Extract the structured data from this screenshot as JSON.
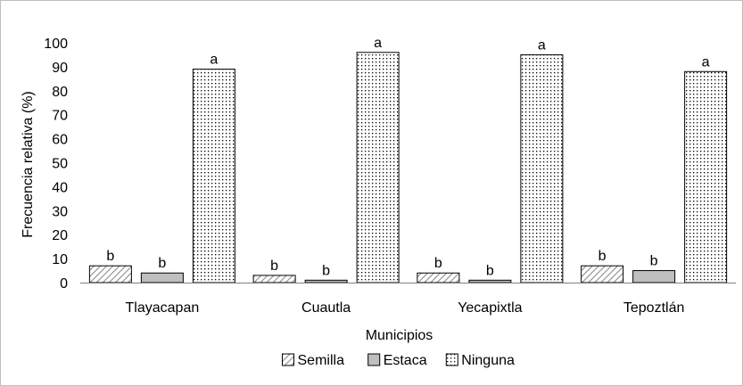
{
  "chart_data": {
    "type": "bar",
    "xlabel": "Municipios",
    "ylabel": "Frecuencia relativa (%)",
    "ylim": [
      0,
      100
    ],
    "yticks": [
      0,
      10,
      20,
      30,
      40,
      50,
      60,
      70,
      80,
      90,
      100
    ],
    "grid": false,
    "legend_position": "bottom",
    "categories": [
      "Tlayacapan",
      "Cuautla",
      "Yecapixtla",
      "Tepoztlán"
    ],
    "series": [
      {
        "name": "Semilla",
        "pattern": "hatch",
        "color": "#a6a6a6",
        "values": [
          7,
          3,
          4,
          7
        ],
        "labels": [
          "b",
          "b",
          "b",
          "b"
        ]
      },
      {
        "name": "Estaca",
        "pattern": "solid",
        "color": "#bfbfbf",
        "values": [
          4,
          1,
          1,
          5
        ],
        "labels": [
          "b",
          "b",
          "b",
          "b"
        ]
      },
      {
        "name": "Ninguna",
        "pattern": "dots",
        "color": "#000000",
        "values": [
          89,
          96,
          95,
          88
        ],
        "labels": [
          "a",
          "a",
          "a",
          "a"
        ]
      }
    ]
  }
}
